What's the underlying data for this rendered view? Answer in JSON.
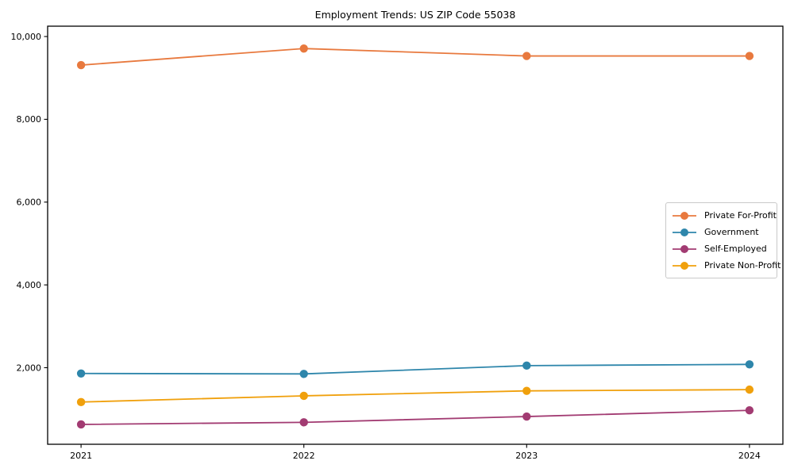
{
  "chart_data": {
    "type": "line",
    "title": "Employment Trends: US ZIP Code 55038",
    "x": [
      2021,
      2022,
      2023,
      2024
    ],
    "xtick_labels": [
      "2021",
      "2022",
      "2023",
      "2024"
    ],
    "yticks": [
      2000,
      4000,
      6000,
      8000,
      10000
    ],
    "ytick_labels": [
      "2,000",
      "4,000",
      "6,000",
      "8,000",
      "10,000"
    ],
    "xlim": [
      2020.85,
      2024.15
    ],
    "ylim": [
      150,
      10250
    ],
    "grid": false,
    "legend_position": "center right",
    "xlabel": "",
    "ylabel": "",
    "series": [
      {
        "name": "Private For-Profit",
        "color": "#E8793E",
        "values": [
          9310,
          9710,
          9530,
          9530
        ]
      },
      {
        "name": "Government",
        "color": "#2E86AB",
        "values": [
          1860,
          1850,
          2050,
          2080
        ]
      },
      {
        "name": "Self-Employed",
        "color": "#A23B72",
        "values": [
          630,
          680,
          820,
          970
        ]
      },
      {
        "name": "Private Non-Profit",
        "color": "#F0A00C",
        "values": [
          1170,
          1320,
          1440,
          1470
        ]
      }
    ]
  },
  "frame": {
    "axis_color": "#000000",
    "background": "#ffffff"
  }
}
